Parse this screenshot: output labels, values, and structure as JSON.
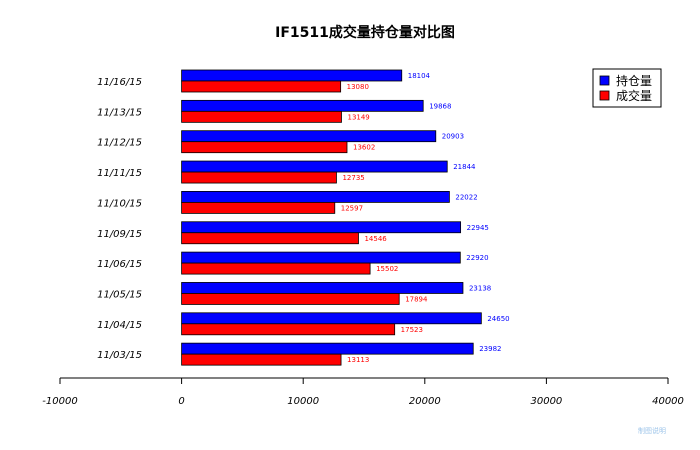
{
  "chart_data": {
    "type": "bar",
    "orientation": "horizontal",
    "title": "IF1511成交量持仓量对比图",
    "categories": [
      "11/16/15",
      "11/13/15",
      "11/12/15",
      "11/11/15",
      "11/10/15",
      "11/09/15",
      "11/06/15",
      "11/05/15",
      "11/04/15",
      "11/03/15"
    ],
    "series": [
      {
        "name": "持仓量",
        "color": "#0000ff",
        "values": [
          18104,
          19868,
          20903,
          21844,
          22022,
          22945,
          22920,
          23138,
          24650,
          23982
        ]
      },
      {
        "name": "成交量",
        "color": "#ff0000",
        "values": [
          13080,
          13149,
          13602,
          12735,
          12597,
          14546,
          15502,
          17894,
          17523,
          13113
        ]
      }
    ],
    "xlim": [
      -10000,
      40000
    ],
    "xticks": [
      "-10000",
      "0",
      "10000",
      "20000",
      "30000",
      "40000"
    ],
    "xtick_values": [
      -10000,
      0,
      10000,
      20000,
      30000,
      40000
    ],
    "legend_position": "top-right",
    "grid": false,
    "watermark": "制图说明"
  }
}
